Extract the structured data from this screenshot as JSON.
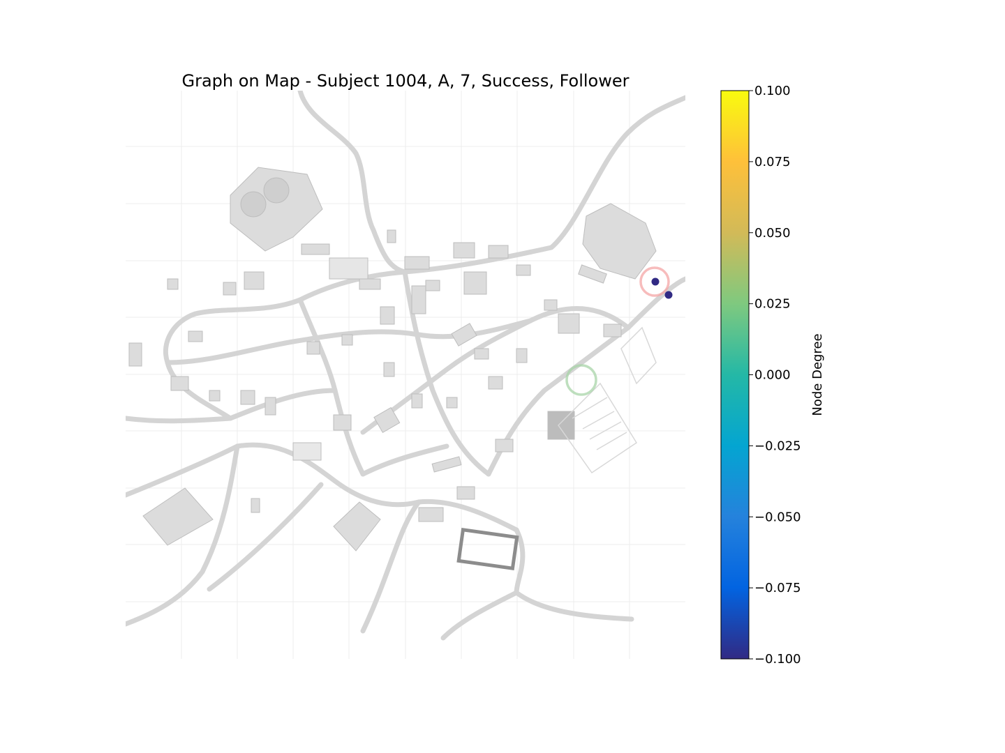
{
  "figure": {
    "title": "Graph on Map - Subject 1004, A, 7, Success, Follower"
  },
  "map": {
    "background": "grayscale village map"
  },
  "chart_data": {
    "type": "scatter",
    "title": "Graph on Map - Subject 1004, A, 7, Success, Follower",
    "nodes": [
      {
        "degree": -0.1,
        "color": "#312a84"
      },
      {
        "degree": -0.1,
        "color": "#312a84"
      }
    ],
    "markers": [
      {
        "type": "start-circle",
        "color": "#f4a6a6"
      },
      {
        "type": "goal-circle",
        "color": "#a8d4a8"
      }
    ],
    "grid": true,
    "colorbar": {
      "label": "Node Degree",
      "range": [
        -0.1,
        0.1
      ],
      "ticks": [
        "0.100",
        "0.075",
        "0.050",
        "0.025",
        "0.000",
        "−0.025",
        "−0.050",
        "−0.075",
        "−0.100"
      ],
      "colormap": "parula",
      "colors": [
        "#f9fb0e",
        "#fec03a",
        "#d2ba58",
        "#7fc97f",
        "#24b8a6",
        "#04a5d1",
        "#2582dc",
        "#0264e1",
        "#312a84"
      ]
    }
  }
}
